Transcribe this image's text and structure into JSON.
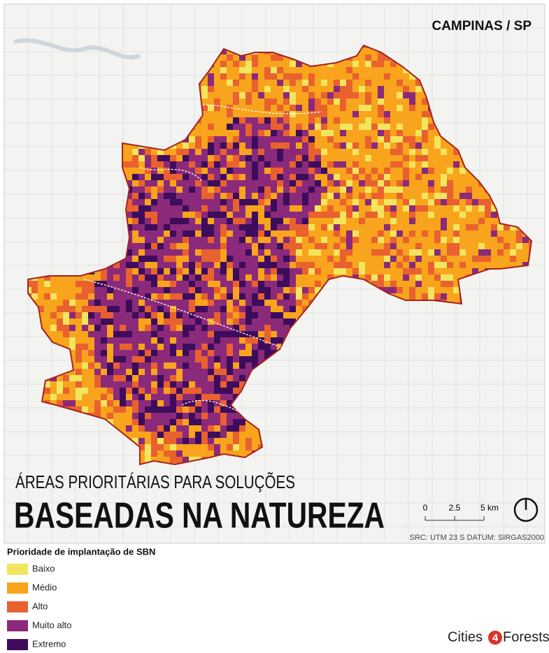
{
  "header": {
    "place": "CAMPINAS / SP",
    "title_line1": "ÁREAS PRIORITÁRIAS PARA SOLUÇÕES",
    "title_line2": "BASEADAS NA NATUREZA"
  },
  "scale_bar": {
    "labels": [
      "0",
      "2.5",
      "5 km"
    ]
  },
  "projection": "SRC: UTM 23 S DATUM: SIRGAS2000",
  "legend": {
    "title": "Prioridade de implantação de SBN",
    "items": [
      {
        "label": "Baixo",
        "color": "#f3e55d"
      },
      {
        "label": "Médio",
        "color": "#f8a41c"
      },
      {
        "label": "Alto",
        "color": "#e9612f"
      },
      {
        "label": "Muito alto",
        "color": "#8b2a7a"
      },
      {
        "label": "Extremo",
        "color": "#3d0c5c"
      }
    ]
  },
  "logo": {
    "prefix": "Cities",
    "number": "4",
    "suffix": "Forests"
  }
}
